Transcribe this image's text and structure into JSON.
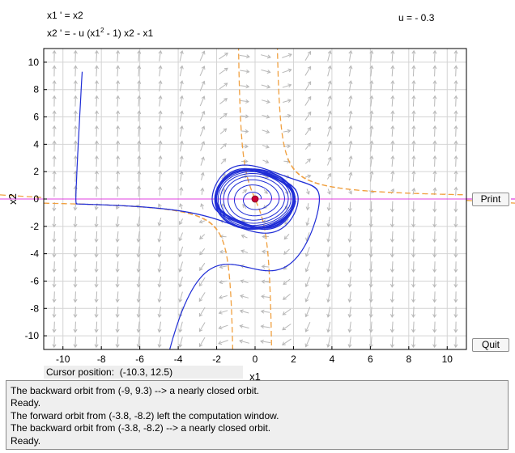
{
  "equations": {
    "line1": "x1 ' = x2",
    "line2_pre": "x2 ' = - u (x1",
    "line2_sup": "2",
    "line2_post": " - 1) x2 - x1"
  },
  "parameter": {
    "label": "u = - 0.3",
    "u": -0.3
  },
  "chart_data": {
    "type": "phase-portrait",
    "xlabel": "x1",
    "ylabel": "x2",
    "xlim": [
      -11,
      11
    ],
    "ylim": [
      -11,
      11
    ],
    "xticks": [
      -10,
      -8,
      -6,
      -4,
      -2,
      0,
      2,
      4,
      6,
      8,
      10
    ],
    "yticks": [
      -10,
      -8,
      -6,
      -4,
      -2,
      0,
      2,
      4,
      6,
      8,
      10
    ],
    "grid": true,
    "system": {
      "f1": "x2",
      "f2": "-u*(x1^2-1)*x2 - x1",
      "u": -0.3
    },
    "equilibrium": {
      "x": 0,
      "y": 0,
      "color": "#cc0033"
    },
    "limit_cycle_approx": {
      "center": [
        0,
        0
      ],
      "rx": 2.0,
      "ry": 2.1
    },
    "orbits": [
      {
        "start": [
          -9,
          9.3
        ],
        "direction": "backward",
        "color": "#1f2dd6"
      },
      {
        "start": [
          -3.8,
          -8.2
        ],
        "direction": "forward",
        "color": "#1f2dd6"
      },
      {
        "start": [
          -3.8,
          -8.2
        ],
        "direction": "backward",
        "color": "#1f2dd6"
      }
    ],
    "nullclines": {
      "x1": {
        "equation": "x2 = 0",
        "color": "#e040e0"
      },
      "x2": {
        "equation": "x2 = x1 / (0.3 (x1^2 - 1))",
        "color": "#f0a040"
      }
    }
  },
  "buttons": {
    "print": "Print",
    "quit": "Quit"
  },
  "cursor": {
    "label": "Cursor position:",
    "value": "(-10.3, 12.5)"
  },
  "messages": [
    "The backward orbit from (-9, 9.3) --> a nearly closed orbit.",
    "Ready.",
    "The forward orbit from (-3.8, -8.2) left the computation window.",
    "The backward orbit from (-3.8, -8.2) --> a nearly closed orbit.",
    "Ready."
  ]
}
